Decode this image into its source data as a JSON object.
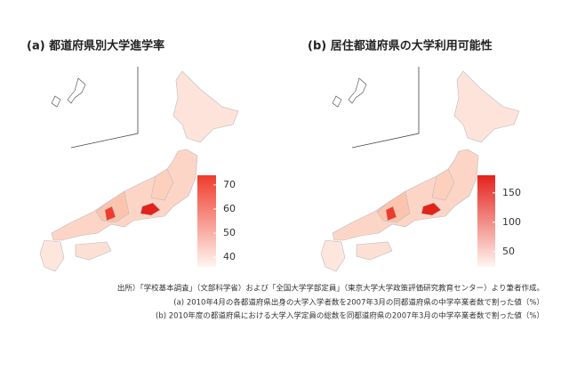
{
  "panels": [
    {
      "title": "(a) 都道府県別大学進学率",
      "colorbar": {
        "lim": [
          36,
          74
        ],
        "ticks": [
          40,
          50,
          60,
          70
        ],
        "colors": [
          "#fff5f0",
          "#ef3b2c"
        ]
      }
    },
    {
      "title": "(b) 居住都道府県の大学利用可能性",
      "colorbar": {
        "lim": [
          24,
          180
        ],
        "ticks": [
          50,
          100,
          150
        ],
        "colors": [
          "#fff5f0",
          "#e3221c"
        ]
      }
    }
  ],
  "notes": [
    "出所）「学校基本調査」（文部科学省）および「全国大学学部定員」（東京大学大学政策評価研究教育センター）より筆者作成。",
    "(a) 2010年4月の各都道府県出身の大学入学者数を2007年3月の同都道府県の中学卒業者数で割った値（%）",
    "(b) 2010年度の都道府県における大学入学定員の総数を同都道府県の2007年3月の中学卒業者数で割った値（%）"
  ]
}
